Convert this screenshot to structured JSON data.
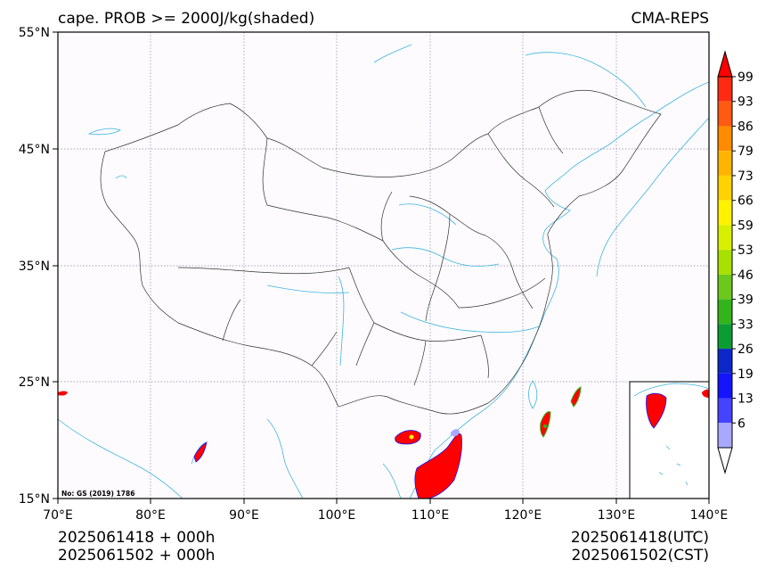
{
  "title": "cape. PROB >= 2000J/kg(shaded)",
  "model": "CMA-REPS",
  "map_note": "No: GS (2019) 1786",
  "axes": {
    "lon_ticks": [
      "70°E",
      "80°E",
      "90°E",
      "100°E",
      "110°E",
      "120°E",
      "130°E",
      "140°E"
    ],
    "lat_ticks": [
      "55°N",
      "45°N",
      "35°N",
      "25°N",
      "15°N"
    ]
  },
  "colorbar": {
    "labels": [
      "99",
      "93",
      "86",
      "79",
      "73",
      "66",
      "59",
      "53",
      "46",
      "39",
      "33",
      "26",
      "19",
      "13",
      "6"
    ],
    "colors": [
      "#ff2a12",
      "#ff5a12",
      "#ff8c00",
      "#ffb400",
      "#ffd200",
      "#fff200",
      "#d8f000",
      "#a8e000",
      "#6cc81c",
      "#34b41c",
      "#0c9c34",
      "#0c28c8",
      "#1414ff",
      "#4444ff",
      "#a8a8ff"
    ],
    "over_color": "#ff0000",
    "under_color": "#ffffff"
  },
  "footer": {
    "left_line1": "2025061418  +  000h",
    "left_line2": "2025061502  +  000h",
    "right_line1": "2025061418(UTC)",
    "right_line2": "2025061502(CST)"
  },
  "colors": {
    "coast": "#3fb4e0",
    "border": "#333333",
    "grid": "#8a8aa0",
    "shade_max": "#ff0000"
  }
}
